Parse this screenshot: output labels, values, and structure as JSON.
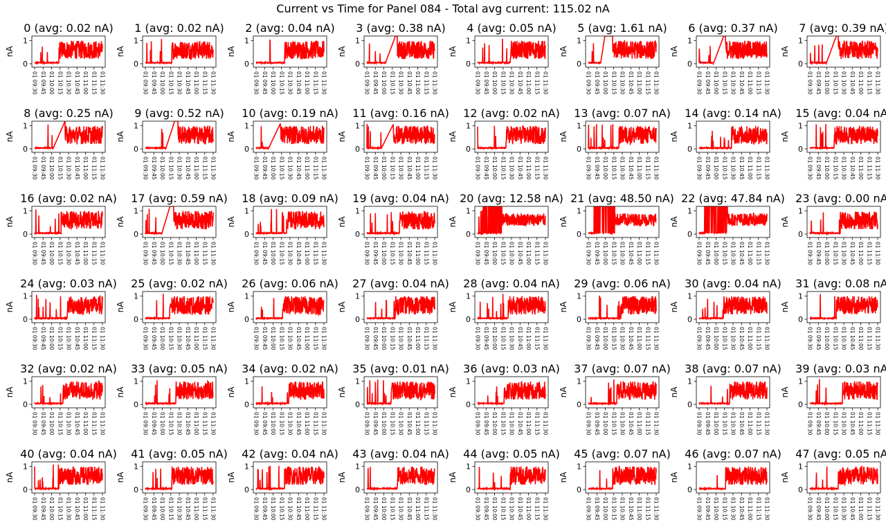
{
  "chart_data": {
    "type": "line",
    "title": "Current vs Time for Panel 084 - Total avg current: 115.02 nA",
    "ylabel": "nA",
    "ylim": [
      -0.15,
      1.2
    ],
    "yticks": [
      0,
      1
    ],
    "xticks": [
      "01 09:30",
      "01 09:45",
      "01 10:00",
      "01 10:15",
      "01 10:30",
      "01 10:45",
      "01 11:00",
      "01 11:15",
      "01 11:30"
    ],
    "series_color": "#ff0000",
    "grid": false,
    "panels": [
      {
        "title": "0 (avg: 0.02 nA)",
        "avg_nA": 0.02
      },
      {
        "title": "1 (avg: 0.02 nA)",
        "avg_nA": 0.02
      },
      {
        "title": "2 (avg: 0.04 nA)",
        "avg_nA": 0.04
      },
      {
        "title": "3 (avg: 0.38 nA)",
        "avg_nA": 0.38
      },
      {
        "title": "4 (avg: 0.05 nA)",
        "avg_nA": 0.05
      },
      {
        "title": "5 (avg: 1.61 nA)",
        "avg_nA": 1.61
      },
      {
        "title": "6 (avg: 0.37 nA)",
        "avg_nA": 0.37
      },
      {
        "title": "7 (avg: 0.39 nA)",
        "avg_nA": 0.39
      },
      {
        "title": "8 (avg: 0.25 nA)",
        "avg_nA": 0.25
      },
      {
        "title": "9 (avg: 0.52 nA)",
        "avg_nA": 0.52
      },
      {
        "title": "10 (avg: 0.19 nA)",
        "avg_nA": 0.19
      },
      {
        "title": "11 (avg: 0.16 nA)",
        "avg_nA": 0.16
      },
      {
        "title": "12 (avg: 0.02 nA)",
        "avg_nA": 0.02
      },
      {
        "title": "13 (avg: 0.07 nA)",
        "avg_nA": 0.07
      },
      {
        "title": "14 (avg: 0.14 nA)",
        "avg_nA": 0.14
      },
      {
        "title": "15 (avg: 0.04 nA)",
        "avg_nA": 0.04
      },
      {
        "title": "16 (avg: 0.02 nA)",
        "avg_nA": 0.02
      },
      {
        "title": "17 (avg: 0.59 nA)",
        "avg_nA": 0.59
      },
      {
        "title": "18 (avg: 0.09 nA)",
        "avg_nA": 0.09
      },
      {
        "title": "19 (avg: 0.04 nA)",
        "avg_nA": 0.04
      },
      {
        "title": "20 (avg: 12.58 nA)",
        "avg_nA": 12.58
      },
      {
        "title": "21 (avg: 48.50 nA)",
        "avg_nA": 48.5
      },
      {
        "title": "22 (avg: 47.84 nA)",
        "avg_nA": 47.84
      },
      {
        "title": "23 (avg: 0.00 nA)",
        "avg_nA": 0.0
      },
      {
        "title": "24 (avg: 0.03 nA)",
        "avg_nA": 0.03
      },
      {
        "title": "25 (avg: 0.02 nA)",
        "avg_nA": 0.02
      },
      {
        "title": "26 (avg: 0.06 nA)",
        "avg_nA": 0.06
      },
      {
        "title": "27 (avg: 0.04 nA)",
        "avg_nA": 0.04
      },
      {
        "title": "28 (avg: 0.04 nA)",
        "avg_nA": 0.04
      },
      {
        "title": "29 (avg: 0.06 nA)",
        "avg_nA": 0.06
      },
      {
        "title": "30 (avg: 0.04 nA)",
        "avg_nA": 0.04
      },
      {
        "title": "31 (avg: 0.08 nA)",
        "avg_nA": 0.08
      },
      {
        "title": "32 (avg: 0.02 nA)",
        "avg_nA": 0.02
      },
      {
        "title": "33 (avg: 0.05 nA)",
        "avg_nA": 0.05
      },
      {
        "title": "34 (avg: 0.02 nA)",
        "avg_nA": 0.02
      },
      {
        "title": "35 (avg: 0.01 nA)",
        "avg_nA": 0.01
      },
      {
        "title": "36 (avg: 0.03 nA)",
        "avg_nA": 0.03
      },
      {
        "title": "37 (avg: 0.07 nA)",
        "avg_nA": 0.07
      },
      {
        "title": "38 (avg: 0.07 nA)",
        "avg_nA": 0.07
      },
      {
        "title": "39 (avg: 0.03 nA)",
        "avg_nA": 0.03
      },
      {
        "title": "40 (avg: 0.04 nA)",
        "avg_nA": 0.04
      },
      {
        "title": "41 (avg: 0.05 nA)",
        "avg_nA": 0.05
      },
      {
        "title": "42 (avg: 0.04 nA)",
        "avg_nA": 0.04
      },
      {
        "title": "43 (avg: 0.04 nA)",
        "avg_nA": 0.04
      },
      {
        "title": "44 (avg: 0.05 nA)",
        "avg_nA": 0.05
      },
      {
        "title": "45 (avg: 0.07 nA)",
        "avg_nA": 0.07
      },
      {
        "title": "46 (avg: 0.07 nA)",
        "avg_nA": 0.07
      },
      {
        "title": "47 (avg: 0.05 nA)",
        "avg_nA": 0.05
      }
    ]
  }
}
